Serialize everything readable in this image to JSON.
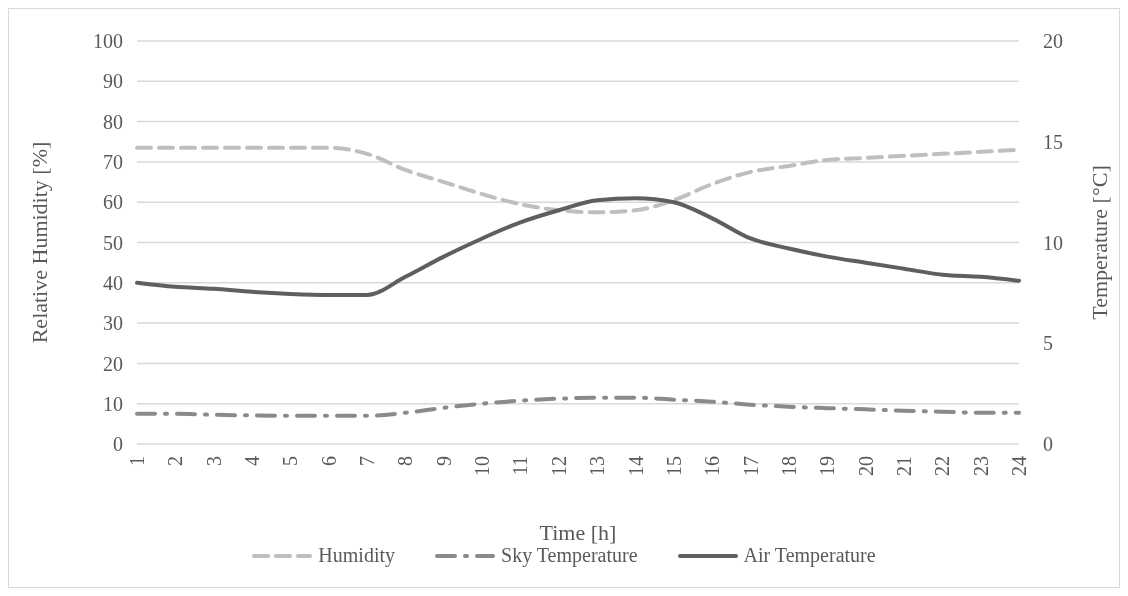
{
  "chart_data": {
    "type": "line",
    "xlabel": "Time [h]",
    "ylabel": "Relative Humidity [%]",
    "y2label": "Temperature [°C]",
    "categories": [
      "1",
      "2",
      "3",
      "4",
      "5",
      "6",
      "7",
      "8",
      "9",
      "10",
      "11",
      "12",
      "13",
      "14",
      "15",
      "16",
      "17",
      "18",
      "19",
      "20",
      "21",
      "22",
      "23",
      "24"
    ],
    "series": [
      {
        "name": "Humidity",
        "color": "#bfbfbf",
        "line_style": "dashed",
        "values": [
          73.5,
          73.5,
          73.5,
          73.5,
          73.5,
          73.5,
          72,
          68,
          65,
          62,
          59.5,
          58,
          57.5,
          58,
          60.5,
          64.5,
          67.5,
          69,
          70.5,
          71,
          71.5,
          72,
          72.5,
          73
        ]
      },
      {
        "name": "Sky Temperature",
        "color": "#8a8a8a",
        "line_style": "dashdot",
        "axis": "y2",
        "values": [
          1.5,
          1.5,
          1.45,
          1.42,
          1.4,
          1.4,
          1.4,
          1.55,
          1.8,
          2.0,
          2.15,
          2.25,
          2.3,
          2.3,
          2.2,
          2.1,
          1.95,
          1.85,
          1.78,
          1.72,
          1.65,
          1.6,
          1.55,
          1.55
        ]
      },
      {
        "name": "Air Temperature",
        "color": "#5f5f5f",
        "line_style": "solid",
        "axis": "y2",
        "values": [
          8.0,
          7.8,
          7.7,
          7.55,
          7.45,
          7.4,
          7.4,
          8.3,
          9.3,
          10.2,
          11.0,
          11.6,
          12.1,
          12.2,
          12.0,
          11.2,
          10.2,
          9.7,
          9.3,
          9.0,
          8.7,
          8.4,
          8.3,
          8.1
        ]
      }
    ],
    "ylim": [
      0,
      100
    ],
    "yticks": [
      0,
      10,
      20,
      30,
      40,
      50,
      60,
      70,
      80,
      90,
      100
    ],
    "y2lim": [
      0,
      20
    ],
    "y2ticks": [
      0,
      5,
      10,
      15,
      20
    ],
    "grid": "y",
    "legend": "bottom"
  }
}
